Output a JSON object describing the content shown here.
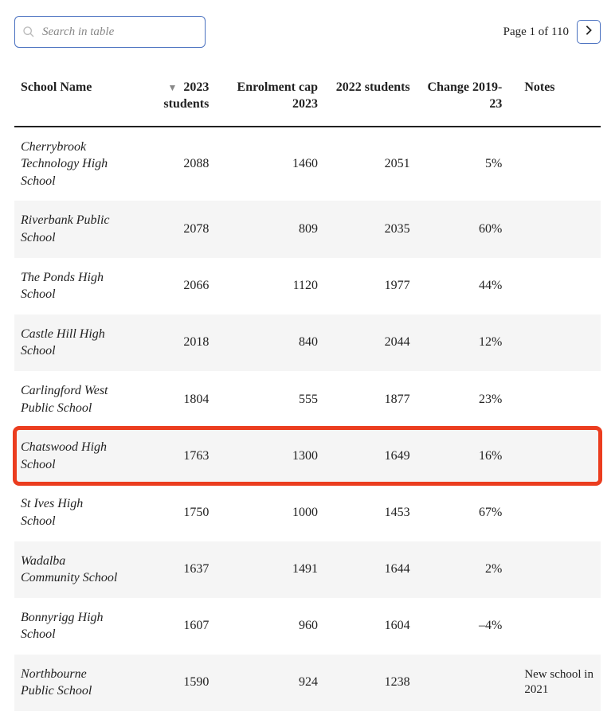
{
  "search": {
    "placeholder": "Search in table"
  },
  "pager": {
    "text": "Page 1 of 110"
  },
  "columns": {
    "name": "School Name",
    "students2023": "2023 students",
    "cap2023": "Enrolment cap 2023",
    "students2022": "2022 students",
    "change": "Change 2019-23",
    "notes": "Notes"
  },
  "sort_indicator": "▼",
  "highlight_color": "#eb3d1f",
  "rows": [
    {
      "name": "Cherrybrook Technology High School",
      "s2023": "2088",
      "cap": "1460",
      "s2022": "2051",
      "change": "5%",
      "notes": ""
    },
    {
      "name": "Riverbank Public School",
      "s2023": "2078",
      "cap": "809",
      "s2022": "2035",
      "change": "60%",
      "notes": ""
    },
    {
      "name": "The Ponds High School",
      "s2023": "2066",
      "cap": "1120",
      "s2022": "1977",
      "change": "44%",
      "notes": ""
    },
    {
      "name": "Castle Hill High School",
      "s2023": "2018",
      "cap": "840",
      "s2022": "2044",
      "change": "12%",
      "notes": ""
    },
    {
      "name": "Carlingford West Public School",
      "s2023": "1804",
      "cap": "555",
      "s2022": "1877",
      "change": "23%",
      "notes": ""
    },
    {
      "name": "Chatswood High School",
      "s2023": "1763",
      "cap": "1300",
      "s2022": "1649",
      "change": "16%",
      "notes": "",
      "highlight": true
    },
    {
      "name": "St Ives High School",
      "s2023": "1750",
      "cap": "1000",
      "s2022": "1453",
      "change": "67%",
      "notes": ""
    },
    {
      "name": "Wadalba Community School",
      "s2023": "1637",
      "cap": "1491",
      "s2022": "1644",
      "change": "2%",
      "notes": ""
    },
    {
      "name": "Bonnyrigg High School",
      "s2023": "1607",
      "cap": "960",
      "s2022": "1604",
      "change": "–4%",
      "notes": ""
    },
    {
      "name": "Northbourne Public School",
      "s2023": "1590",
      "cap": "924",
      "s2022": "1238",
      "change": "",
      "notes": "New school in 2021"
    }
  ]
}
